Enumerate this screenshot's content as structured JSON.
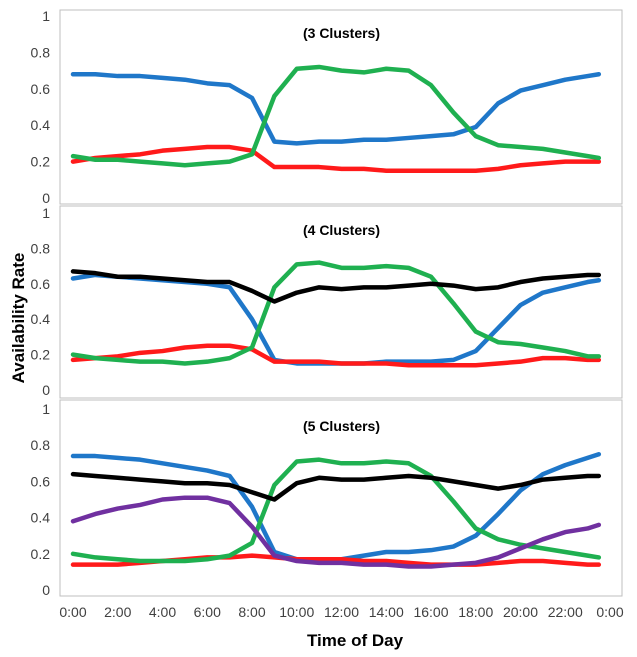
{
  "chart_data": {
    "type": "line",
    "xlabel": "Time of Day",
    "ylabel": "Availability Rate",
    "x_ticks": [
      "0:00",
      "2:00",
      "4:00",
      "6:00",
      "8:00",
      "10:00",
      "12:00",
      "14:00",
      "16:00",
      "18:00",
      "20:00",
      "22:00",
      "0:00"
    ],
    "x_hours": [
      0,
      1,
      2,
      3,
      4,
      5,
      6,
      7,
      8,
      9,
      10,
      11,
      12,
      13,
      14,
      15,
      16,
      17,
      18,
      19,
      20,
      21,
      22,
      23,
      23.5
    ],
    "y_ticks": [
      "0",
      "0.2",
      "0.4",
      "0.6",
      "0.8",
      "1"
    ],
    "ylim": [
      0,
      1
    ],
    "xlim": [
      0,
      24
    ],
    "colors": {
      "blue": "#1f77c9",
      "red": "#ff1a1a",
      "green": "#1fb050",
      "black": "#000000",
      "purple": "#7030a0"
    },
    "panels": [
      {
        "title": "(3 Clusters)",
        "series": [
          {
            "color": "blue",
            "values": [
              0.68,
              0.68,
              0.67,
              0.67,
              0.66,
              0.65,
              0.63,
              0.62,
              0.55,
              0.31,
              0.3,
              0.31,
              0.31,
              0.32,
              0.32,
              0.33,
              0.34,
              0.35,
              0.39,
              0.52,
              0.59,
              0.62,
              0.65,
              0.67,
              0.68
            ]
          },
          {
            "color": "red",
            "values": [
              0.2,
              0.22,
              0.23,
              0.24,
              0.26,
              0.27,
              0.28,
              0.28,
              0.26,
              0.17,
              0.17,
              0.17,
              0.16,
              0.16,
              0.15,
              0.15,
              0.15,
              0.15,
              0.15,
              0.16,
              0.18,
              0.19,
              0.2,
              0.2,
              0.2
            ]
          },
          {
            "color": "green",
            "values": [
              0.23,
              0.21,
              0.21,
              0.2,
              0.19,
              0.18,
              0.19,
              0.2,
              0.24,
              0.56,
              0.71,
              0.72,
              0.7,
              0.69,
              0.71,
              0.7,
              0.62,
              0.47,
              0.34,
              0.29,
              0.28,
              0.27,
              0.25,
              0.23,
              0.22
            ]
          }
        ]
      },
      {
        "title": "(4 Clusters)",
        "series": [
          {
            "color": "blue",
            "values": [
              0.63,
              0.65,
              0.64,
              0.63,
              0.62,
              0.61,
              0.6,
              0.58,
              0.4,
              0.17,
              0.15,
              0.15,
              0.15,
              0.15,
              0.16,
              0.16,
              0.16,
              0.17,
              0.22,
              0.35,
              0.48,
              0.55,
              0.58,
              0.61,
              0.62
            ]
          },
          {
            "color": "red",
            "values": [
              0.17,
              0.18,
              0.19,
              0.21,
              0.22,
              0.24,
              0.25,
              0.25,
              0.23,
              0.16,
              0.16,
              0.16,
              0.15,
              0.15,
              0.15,
              0.14,
              0.14,
              0.14,
              0.14,
              0.15,
              0.16,
              0.18,
              0.18,
              0.17,
              0.17
            ]
          },
          {
            "color": "green",
            "values": [
              0.2,
              0.18,
              0.17,
              0.16,
              0.16,
              0.15,
              0.16,
              0.18,
              0.24,
              0.58,
              0.71,
              0.72,
              0.69,
              0.69,
              0.7,
              0.69,
              0.64,
              0.49,
              0.33,
              0.27,
              0.26,
              0.24,
              0.22,
              0.19,
              0.19
            ]
          },
          {
            "color": "black",
            "values": [
              0.67,
              0.66,
              0.64,
              0.64,
              0.63,
              0.62,
              0.61,
              0.61,
              0.56,
              0.5,
              0.55,
              0.58,
              0.57,
              0.58,
              0.58,
              0.59,
              0.6,
              0.59,
              0.57,
              0.58,
              0.61,
              0.63,
              0.64,
              0.65,
              0.65
            ]
          }
        ]
      },
      {
        "title": "(5 Clusters)",
        "series": [
          {
            "color": "blue",
            "values": [
              0.74,
              0.74,
              0.73,
              0.72,
              0.7,
              0.68,
              0.66,
              0.63,
              0.46,
              0.21,
              0.17,
              0.17,
              0.17,
              0.19,
              0.21,
              0.21,
              0.22,
              0.24,
              0.3,
              0.42,
              0.55,
              0.64,
              0.69,
              0.73,
              0.75
            ]
          },
          {
            "color": "red",
            "values": [
              0.14,
              0.14,
              0.14,
              0.15,
              0.16,
              0.17,
              0.18,
              0.18,
              0.19,
              0.18,
              0.17,
              0.17,
              0.17,
              0.16,
              0.16,
              0.15,
              0.14,
              0.14,
              0.14,
              0.15,
              0.16,
              0.16,
              0.15,
              0.14,
              0.14
            ]
          },
          {
            "color": "green",
            "values": [
              0.2,
              0.18,
              0.17,
              0.16,
              0.16,
              0.16,
              0.17,
              0.19,
              0.26,
              0.58,
              0.71,
              0.72,
              0.7,
              0.7,
              0.71,
              0.7,
              0.63,
              0.49,
              0.34,
              0.28,
              0.25,
              0.23,
              0.21,
              0.19,
              0.18
            ]
          },
          {
            "color": "black",
            "values": [
              0.64,
              0.63,
              0.62,
              0.61,
              0.6,
              0.59,
              0.59,
              0.58,
              0.54,
              0.5,
              0.59,
              0.62,
              0.61,
              0.61,
              0.62,
              0.63,
              0.62,
              0.6,
              0.58,
              0.56,
              0.58,
              0.61,
              0.62,
              0.63,
              0.63
            ]
          },
          {
            "color": "purple",
            "values": [
              0.38,
              0.42,
              0.45,
              0.47,
              0.5,
              0.51,
              0.51,
              0.48,
              0.35,
              0.19,
              0.16,
              0.15,
              0.15,
              0.14,
              0.14,
              0.13,
              0.13,
              0.14,
              0.15,
              0.18,
              0.23,
              0.28,
              0.32,
              0.34,
              0.36
            ]
          }
        ]
      }
    ]
  }
}
